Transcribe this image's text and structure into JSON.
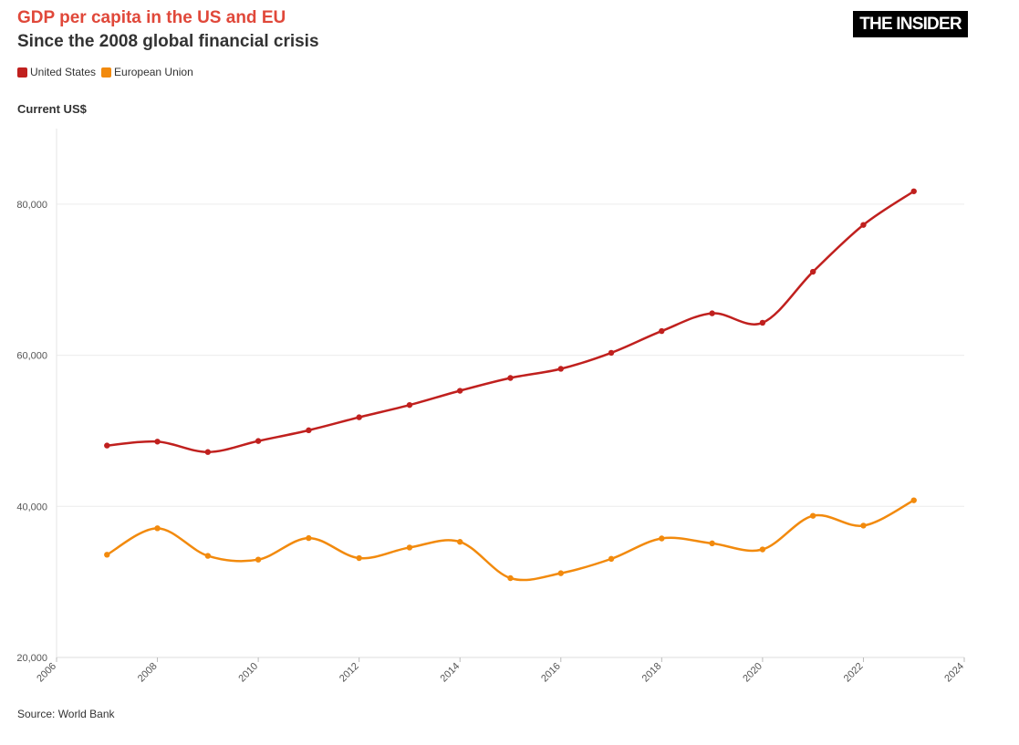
{
  "brand": {
    "logo_text": "THE INSIDER"
  },
  "chart_data": {
    "type": "line",
    "title": "GDP per capita in the US and EU",
    "subtitle": "Since the 2008 global financial crisis",
    "ylabel": "Current US$",
    "source": "Source: World Bank",
    "xlim": [
      2006,
      2024
    ],
    "ylim": [
      20000,
      90000
    ],
    "x_ticks": [
      2006,
      2008,
      2010,
      2012,
      2014,
      2016,
      2018,
      2020,
      2022,
      2024
    ],
    "y_ticks": [
      20000,
      40000,
      60000,
      80000
    ],
    "y_tick_labels": [
      "20,000",
      "40,000",
      "60,000",
      "80,000"
    ],
    "grid": true,
    "legend_position": "top-left",
    "x": [
      2007,
      2008,
      2009,
      2010,
      2011,
      2012,
      2013,
      2014,
      2015,
      2016,
      2017,
      2018,
      2019,
      2020,
      2021,
      2022,
      2023
    ],
    "series": [
      {
        "name": "United States",
        "color": "#c0201e",
        "values": [
          48050,
          48570,
          47190,
          48650,
          50070,
          51790,
          53410,
          55300,
          56990,
          58200,
          60320,
          63200,
          65550,
          64300,
          71050,
          77250,
          81700
        ]
      },
      {
        "name": "European Union",
        "color": "#f28a0d",
        "values": [
          33600,
          37100,
          33450,
          32950,
          35800,
          33150,
          34550,
          35300,
          30500,
          31150,
          33050,
          35750,
          35100,
          34300,
          38750,
          37450,
          40800
        ]
      }
    ]
  }
}
